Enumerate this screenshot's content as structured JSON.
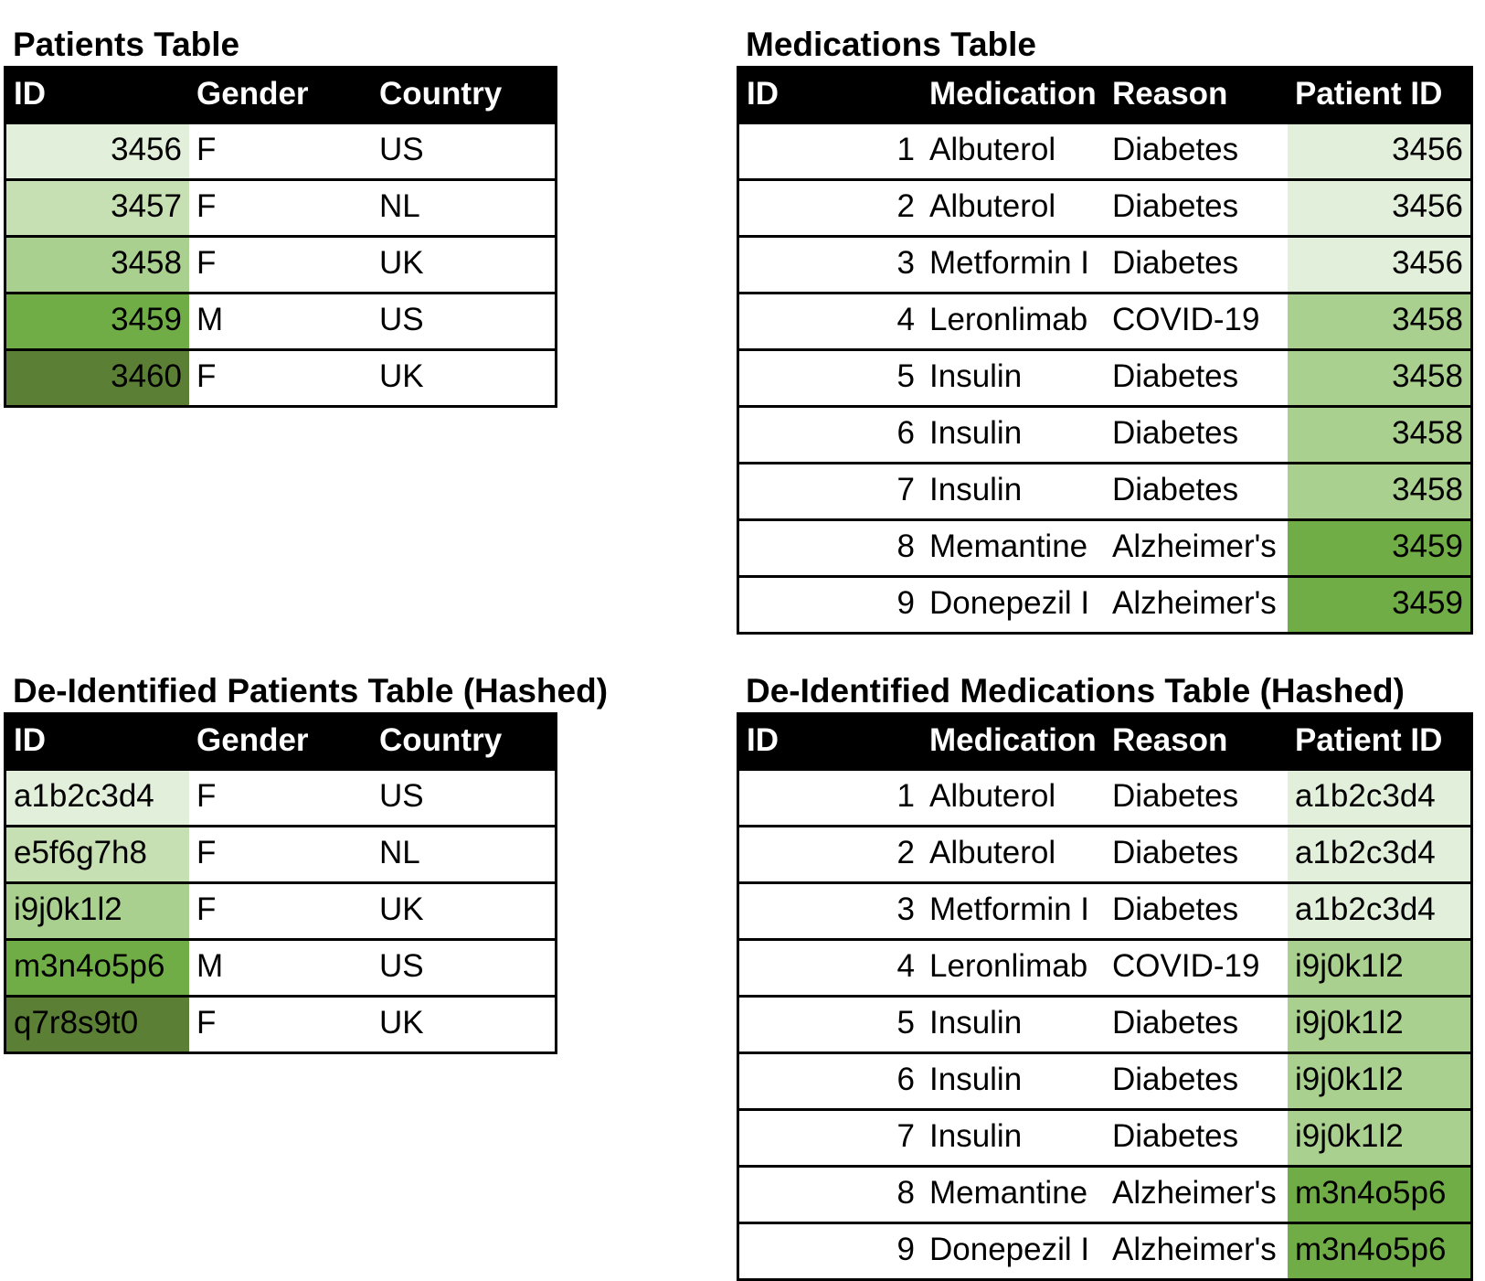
{
  "tables": [
    {
      "title": "Patients Table",
      "columns": [
        "ID",
        "Gender",
        "Country"
      ],
      "align": [
        "right",
        "left",
        "left"
      ],
      "highlight_column": 0,
      "rows": [
        [
          3456,
          "F",
          "US"
        ],
        [
          3457,
          "F",
          "NL"
        ],
        [
          3458,
          "F",
          "UK"
        ],
        [
          3459,
          "M",
          "US"
        ],
        [
          3460,
          "F",
          "UK"
        ]
      ],
      "highlight_colors": [
        "#e2efda",
        "#c6e0b4",
        "#a9d08e",
        "#70ad47",
        "#5a7f35"
      ]
    },
    {
      "title": "Medications Table",
      "columns": [
        "ID",
        "Medication",
        "Reason",
        "Patient ID"
      ],
      "align": [
        "right",
        "left",
        "left",
        "right"
      ],
      "highlight_column": 3,
      "rows": [
        [
          1,
          "Albuterol",
          "Diabetes",
          3456
        ],
        [
          2,
          "Albuterol",
          "Diabetes",
          3456
        ],
        [
          3,
          "Metformin I",
          "Diabetes",
          3456
        ],
        [
          4,
          "Leronlimab",
          "COVID-19",
          3458
        ],
        [
          5,
          "Insulin",
          "Diabetes",
          3458
        ],
        [
          6,
          "Insulin",
          "Diabetes",
          3458
        ],
        [
          7,
          "Insulin",
          "Diabetes",
          3458
        ],
        [
          8,
          "Memantine",
          "Alzheimer's",
          3459
        ],
        [
          9,
          "Donepezil I",
          "Alzheimer's",
          3459
        ]
      ],
      "highlight_colors": [
        "#e2efda",
        "#e2efda",
        "#e2efda",
        "#a9d08e",
        "#a9d08e",
        "#a9d08e",
        "#a9d08e",
        "#70ad47",
        "#70ad47"
      ]
    },
    {
      "title": "De-Identified Patients Table (Hashed)",
      "columns": [
        "ID",
        "Gender",
        "Country"
      ],
      "align": [
        "left",
        "left",
        "left"
      ],
      "highlight_column": 0,
      "rows": [
        [
          "a1b2c3d4",
          "F",
          "US"
        ],
        [
          "e5f6g7h8",
          "F",
          "NL"
        ],
        [
          "i9j0k1l2",
          "F",
          "UK"
        ],
        [
          "m3n4o5p6",
          "M",
          "US"
        ],
        [
          "q7r8s9t0",
          "F",
          "UK"
        ]
      ],
      "highlight_colors": [
        "#e2efda",
        "#c6e0b4",
        "#a9d08e",
        "#70ad47",
        "#5a7f35"
      ]
    },
    {
      "title": "De-Identified Medications Table (Hashed)",
      "columns": [
        "ID",
        "Medication",
        "Reason",
        "Patient ID"
      ],
      "align": [
        "right",
        "left",
        "left",
        "left"
      ],
      "highlight_column": 3,
      "rows": [
        [
          1,
          "Albuterol",
          "Diabetes",
          "a1b2c3d4"
        ],
        [
          2,
          "Albuterol",
          "Diabetes",
          "a1b2c3d4"
        ],
        [
          3,
          "Metformin I",
          "Diabetes",
          "a1b2c3d4"
        ],
        [
          4,
          "Leronlimab",
          "COVID-19",
          "i9j0k1l2"
        ],
        [
          5,
          "Insulin",
          "Diabetes",
          "i9j0k1l2"
        ],
        [
          6,
          "Insulin",
          "Diabetes",
          "i9j0k1l2"
        ],
        [
          7,
          "Insulin",
          "Diabetes",
          "i9j0k1l2"
        ],
        [
          8,
          "Memantine",
          "Alzheimer's",
          "m3n4o5p6"
        ],
        [
          9,
          "Donepezil I",
          "Alzheimer's",
          "m3n4o5p6"
        ]
      ],
      "highlight_colors": [
        "#e2efda",
        "#e2efda",
        "#e2efda",
        "#a9d08e",
        "#a9d08e",
        "#a9d08e",
        "#a9d08e",
        "#70ad47",
        "#70ad47"
      ]
    }
  ]
}
